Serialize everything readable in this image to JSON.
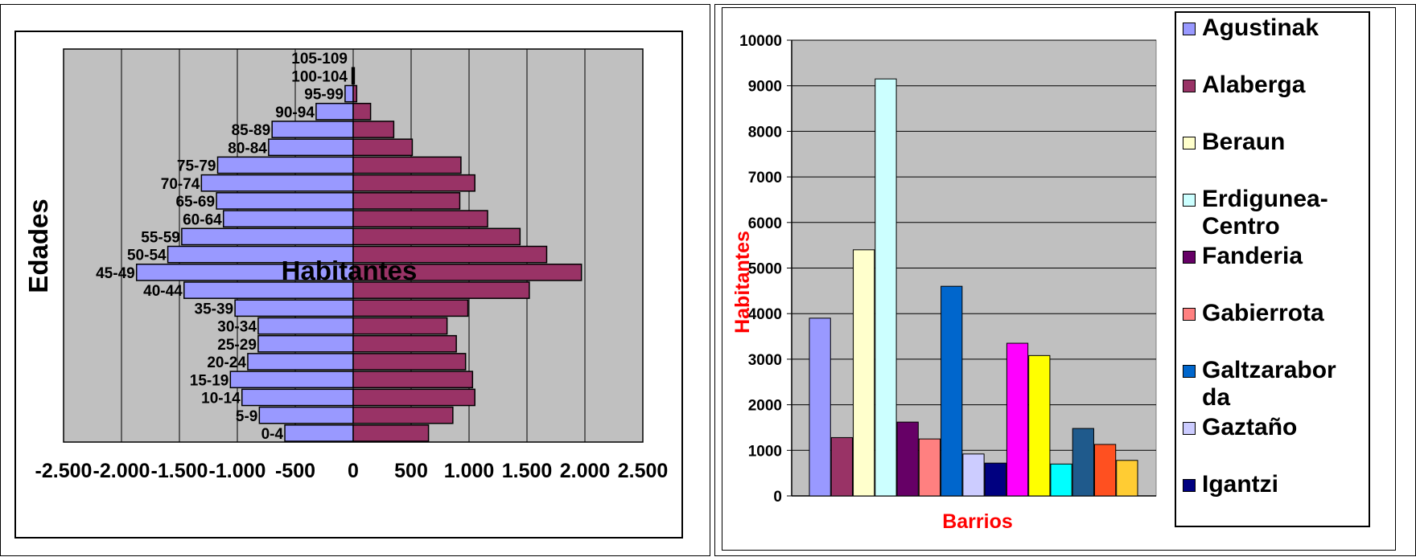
{
  "chart_data": [
    {
      "type": "bar",
      "orientation": "horizontal",
      "title": "Habitantes",
      "ylabel": "Edades",
      "xlim": [
        -2500,
        2500
      ],
      "x_ticks": [
        -2500,
        -2000,
        -1500,
        -1000,
        -500,
        0,
        500,
        1000,
        1500,
        2000,
        2500
      ],
      "x_tick_labels": [
        "-2.500",
        "-2.000",
        "-1.500",
        "-1.000",
        "-500",
        "0",
        "500",
        "1.000",
        "1.500",
        "2.000",
        "2.500"
      ],
      "categories": [
        "105-109",
        "100-104",
        "95-99",
        "90-94",
        "85-89",
        "80-84",
        "75-79",
        "70-74",
        "65-69",
        "60-64",
        "55-59",
        "50-54",
        "45-49",
        "40-44",
        "35-39",
        "30-34",
        "25-29",
        "20-24",
        "15-19",
        "10-14",
        "5-9",
        "0-4"
      ],
      "series": [
        {
          "color": "#9999ff",
          "values": [
            0,
            -10,
            -70,
            -320,
            -700,
            -730,
            -1170,
            -1310,
            -1180,
            -1120,
            -1480,
            -1600,
            -1870,
            -1460,
            -1020,
            -820,
            -820,
            -910,
            -1060,
            -960,
            -810,
            -590
          ]
        },
        {
          "color": "#993366",
          "values": [
            0,
            10,
            30,
            150,
            350,
            510,
            930,
            1050,
            920,
            1160,
            1440,
            1670,
            1970,
            1520,
            990,
            810,
            890,
            970,
            1030,
            1050,
            860,
            650
          ]
        }
      ],
      "grid": true
    },
    {
      "type": "bar",
      "xlabel": "Barrios",
      "ylabel": "Habitantes",
      "ylim": [
        0,
        10000
      ],
      "y_ticks": [
        0,
        1000,
        2000,
        3000,
        4000,
        5000,
        6000,
        7000,
        8000,
        9000,
        10000
      ],
      "legend_position": "right",
      "series": [
        {
          "name": "Agustinak",
          "value": 3900,
          "color": "#9999ff"
        },
        {
          "name": "Alaberga",
          "value": 1280,
          "color": "#993366"
        },
        {
          "name": "Beraun",
          "value": 5400,
          "color": "#ffffcc"
        },
        {
          "name": "Erdigunea-Centro",
          "value": 9150,
          "color": "#ccffff"
        },
        {
          "name": "Fanderia",
          "value": 1620,
          "color": "#660066"
        },
        {
          "name": "Gabierrota",
          "value": 1250,
          "color": "#ff8080"
        },
        {
          "name": "Galtzarabor da",
          "value": 4600,
          "color": "#0066cc"
        },
        {
          "name": "Gaztaño",
          "value": 920,
          "color": "#ccccff"
        },
        {
          "name": "Igantzi",
          "value": 720,
          "color": "#000080"
        },
        {
          "value": 3350,
          "color": "#ff00ff"
        },
        {
          "value": 3080,
          "color": "#ffff00"
        },
        {
          "value": 700,
          "color": "#00ffff"
        },
        {
          "value": 1480,
          "color": "#1f5a8c"
        },
        {
          "value": 1130,
          "color": "#ff5020"
        },
        {
          "value": 780,
          "color": "#ffcc33"
        }
      ],
      "grid": true
    }
  ]
}
